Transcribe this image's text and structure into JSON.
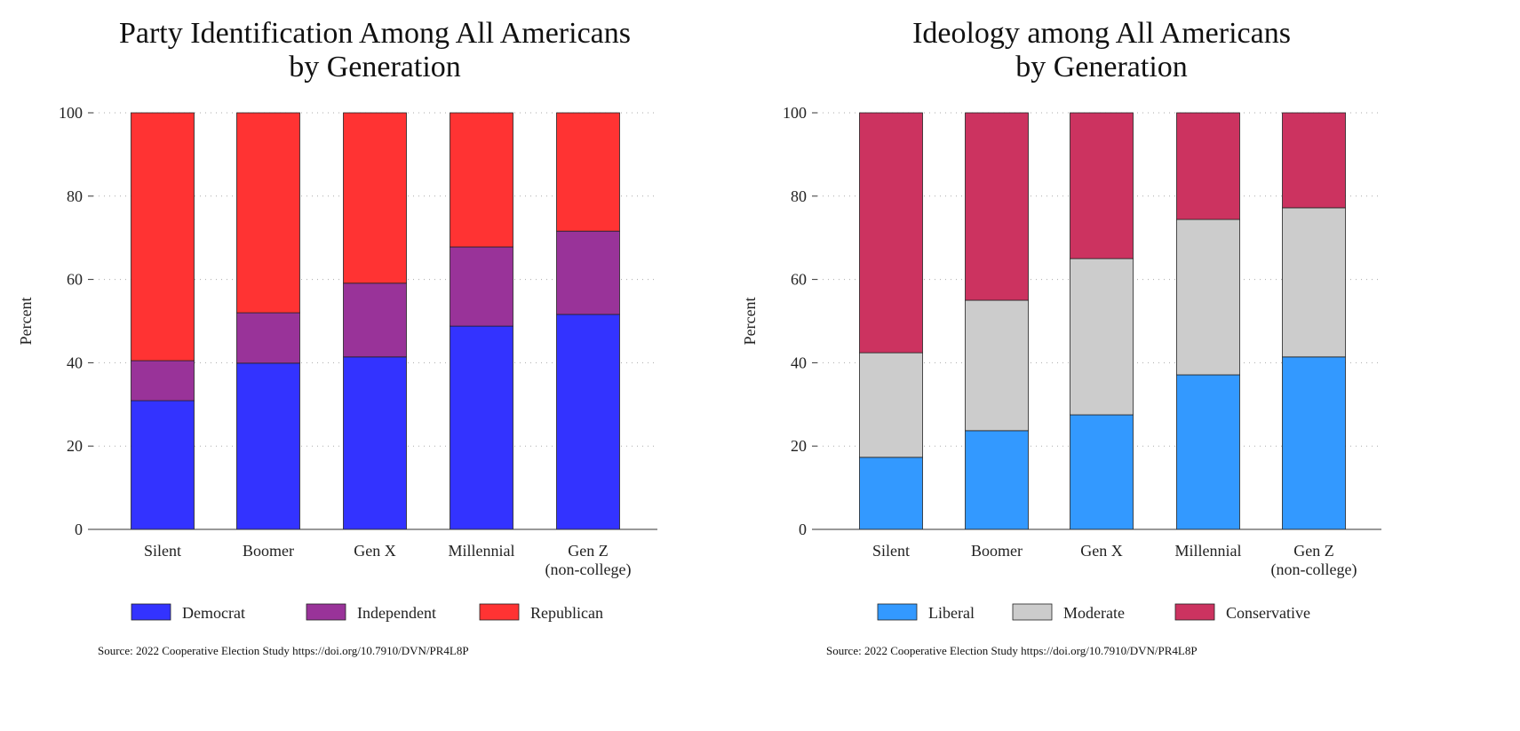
{
  "chart_data": [
    {
      "type": "bar",
      "stacked": true,
      "title": [
        "Party Identification Among All Americans",
        "by Generation"
      ],
      "ylabel": "Percent",
      "ylim": [
        0,
        100
      ],
      "yticks": [
        0,
        20,
        40,
        60,
        80,
        100
      ],
      "grid": "dotted horizontal",
      "categories": [
        [
          "Silent"
        ],
        [
          "Boomer"
        ],
        [
          "Gen X"
        ],
        [
          "Millennial"
        ],
        [
          "Gen Z",
          "(non-college)"
        ]
      ],
      "series": [
        {
          "name": "Democrat",
          "color": "#3333ff",
          "values": [
            30.9,
            39.9,
            41.4,
            48.8,
            51.6
          ]
        },
        {
          "name": "Independent",
          "color": "#993399",
          "values": [
            9.6,
            12.1,
            17.7,
            19.0,
            20.0
          ]
        },
        {
          "name": "Republican",
          "color": "#ff3333",
          "values": [
            59.5,
            48.0,
            40.9,
            32.2,
            28.4
          ]
        }
      ],
      "legend": "bottom",
      "source": "Source: 2022 Cooperative Election Study https://doi.org/10.7910/DVN/PR4L8P"
    },
    {
      "type": "bar",
      "stacked": true,
      "title": [
        "Ideology among All Americans",
        "by Generation"
      ],
      "ylabel": "Percent",
      "ylim": [
        0,
        100
      ],
      "yticks": [
        0,
        20,
        40,
        60,
        80,
        100
      ],
      "grid": "dotted horizontal",
      "categories": [
        [
          "Silent"
        ],
        [
          "Boomer"
        ],
        [
          "Gen X"
        ],
        [
          "Millennial"
        ],
        [
          "Gen Z",
          "(non-college)"
        ]
      ],
      "series": [
        {
          "name": "Liberal",
          "color": "#3399ff",
          "values": [
            17.3,
            23.7,
            27.5,
            37.1,
            41.4
          ]
        },
        {
          "name": "Moderate",
          "color": "#cccccc",
          "values": [
            25.1,
            31.3,
            37.5,
            37.3,
            35.8
          ]
        },
        {
          "name": "Conservative",
          "color": "#cc3360",
          "values": [
            57.6,
            45.0,
            35.0,
            25.6,
            22.8
          ]
        }
      ],
      "legend": "bottom",
      "source": "Source: 2022 Cooperative Election Study https://doi.org/10.7910/DVN/PR4L8P"
    }
  ]
}
